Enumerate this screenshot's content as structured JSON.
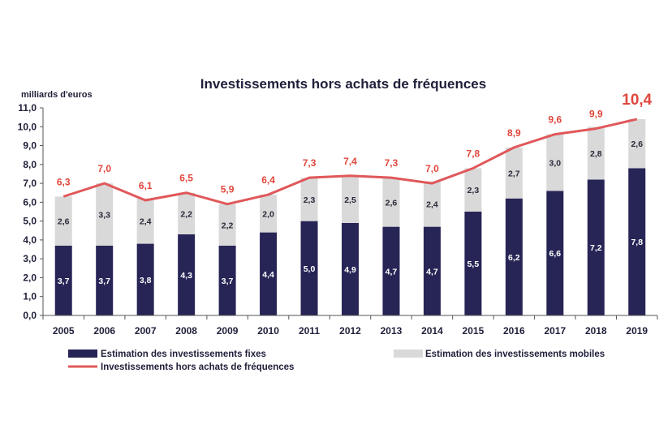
{
  "colors": {
    "fixed": "#272556",
    "mobile": "#d9d9d9",
    "line": "#e0585a",
    "labels_total": "#e0463c"
  },
  "chart_data": {
    "type": "bar",
    "stacked": true,
    "title": "Investissements  hors achats de fréquences",
    "ylabel": "milliards d'euros",
    "ylim": [
      0,
      11
    ],
    "yticks": [
      "0,0",
      "1,0",
      "2,0",
      "3,0",
      "4,0",
      "5,0",
      "6,0",
      "7,0",
      "8,0",
      "9,0",
      "10,0",
      "11,0"
    ],
    "categories": [
      "2005",
      "2006",
      "2007",
      "2008",
      "2009",
      "2010",
      "2011",
      "2012",
      "2013",
      "2014",
      "2015",
      "2016",
      "2017",
      "2018",
      "2019"
    ],
    "series": [
      {
        "name": "Estimation des investissements fixes",
        "kind": "bar",
        "values": [
          3.7,
          3.7,
          3.8,
          4.3,
          3.7,
          4.4,
          5.0,
          4.9,
          4.7,
          4.7,
          5.5,
          6.2,
          6.6,
          7.2,
          7.8
        ],
        "labels": [
          "3,7",
          "3,7",
          "3,8",
          "4,3",
          "3,7",
          "4,4",
          "5,0",
          "4,9",
          "4,7",
          "4,7",
          "5,5",
          "6,2",
          "6,6",
          "7,2",
          "7,8"
        ]
      },
      {
        "name": "Estimation des investissements  mobiles",
        "kind": "bar",
        "values": [
          2.6,
          3.3,
          2.4,
          2.2,
          2.2,
          2.0,
          2.3,
          2.5,
          2.6,
          2.4,
          2.3,
          2.7,
          3.0,
          2.8,
          2.6
        ],
        "labels": [
          "2,6",
          "3,3",
          "2,4",
          "2,2",
          "2,2",
          "2,0",
          "2,3",
          "2,5",
          "2,6",
          "2,4",
          "2,3",
          "2,7",
          "3,0",
          "2,8",
          "2,6"
        ]
      },
      {
        "name": "Investissements hors achats de fréquences",
        "kind": "line",
        "values": [
          6.3,
          7.0,
          6.1,
          6.5,
          5.9,
          6.4,
          7.3,
          7.4,
          7.3,
          7.0,
          7.8,
          8.9,
          9.6,
          9.9,
          10.4
        ],
        "labels": [
          "6,3",
          "7,0",
          "6,1",
          "6,5",
          "5,9",
          "6,4",
          "7,3",
          "7,4",
          "7,3",
          "7,0",
          "7,8",
          "8,9",
          "9,6",
          "9,9",
          "10,4"
        ]
      }
    ],
    "grid": false,
    "legend_position": "bottom"
  }
}
